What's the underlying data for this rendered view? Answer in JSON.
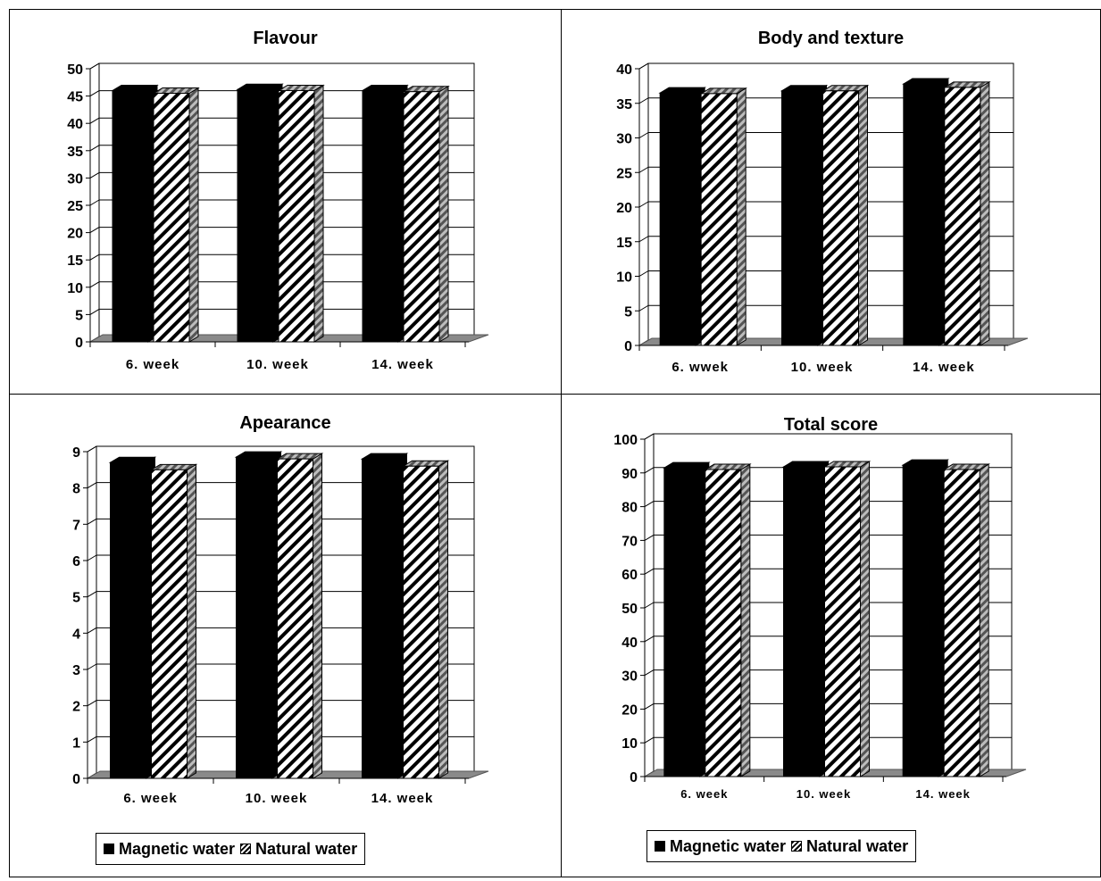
{
  "chart_data": [
    {
      "type": "bar",
      "title": "Flavour",
      "categories": [
        "6. week",
        "10. week",
        "14. week"
      ],
      "series": [
        {
          "name": "Magnetic water",
          "values": [
            46,
            46.2,
            46
          ]
        },
        {
          "name": "Natural water",
          "values": [
            45.5,
            46,
            45.8
          ]
        }
      ],
      "yticks": [
        "0",
        "5",
        "10",
        "15",
        "20",
        "25",
        "30",
        "35",
        "40",
        "45",
        "50"
      ],
      "ylim": [
        0,
        50
      ],
      "grid": true,
      "legend": "none"
    },
    {
      "type": "bar",
      "title": "Body and texture",
      "categories": [
        "6. wwek",
        "10. week",
        "14. week"
      ],
      "series": [
        {
          "name": "Magnetic water",
          "values": [
            36.5,
            36.8,
            37.8
          ]
        },
        {
          "name": "Natural water",
          "values": [
            36.4,
            36.8,
            37.3
          ]
        }
      ],
      "yticks": [
        "0",
        "5",
        "10",
        "15",
        "20",
        "25",
        "30",
        "35",
        "40"
      ],
      "ylim": [
        0,
        40
      ],
      "grid": true,
      "legend": "none"
    },
    {
      "type": "bar",
      "title": "Apearance",
      "categories": [
        "6. week",
        "10. week",
        "14. week"
      ],
      "series": [
        {
          "name": "Magnetic water",
          "values": [
            8.7,
            8.85,
            8.8
          ]
        },
        {
          "name": "Natural water",
          "values": [
            8.5,
            8.8,
            8.6
          ]
        }
      ],
      "yticks": [
        "0",
        "1",
        "2",
        "3",
        "4",
        "5",
        "6",
        "7",
        "8",
        "9"
      ],
      "ylim": [
        0,
        9
      ],
      "grid": true,
      "legend": "bottom"
    },
    {
      "type": "bar",
      "title": "Total score",
      "categories": [
        "6. week",
        "10. week",
        "14. week"
      ],
      "series": [
        {
          "name": "Magnetic water",
          "values": [
            91.5,
            91.8,
            92.3
          ]
        },
        {
          "name": "Natural water",
          "values": [
            91,
            91.8,
            91
          ]
        }
      ],
      "yticks": [
        "0",
        "10",
        "20",
        "30",
        "40",
        "50",
        "60",
        "70",
        "80",
        "90",
        "100"
      ],
      "ylim": [
        0,
        100
      ],
      "grid": true,
      "legend": "bottom"
    }
  ],
  "legend_items": [
    "Magnetic water",
    "Natural water"
  ]
}
